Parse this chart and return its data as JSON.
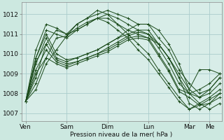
{
  "bg_color": "#cce8e0",
  "plot_bg_color": "#d8ede8",
  "grid_color": "#aacccc",
  "line_color": "#1a4a1a",
  "ylabel_values": [
    1007,
    1008,
    1009,
    1010,
    1011,
    1012
  ],
  "xlabel": "Pression niveau de la mer( hPa )",
  "day_labels": [
    "Ven",
    "Sam",
    "Dim",
    "Lun",
    "Mar",
    "Me"
  ],
  "day_positions": [
    0,
    48,
    96,
    144,
    192,
    216
  ],
  "ylim": [
    1006.6,
    1012.6
  ],
  "xlim": [
    -5,
    230
  ],
  "total_points": 228,
  "series": [
    {
      "pts": [
        [
          0,
          1007.6
        ],
        [
          12,
          1008.5
        ],
        [
          24,
          1009.8
        ],
        [
          36,
          1010.8
        ],
        [
          48,
          1010.9
        ],
        [
          60,
          1011.5
        ],
        [
          72,
          1011.8
        ],
        [
          84,
          1012.0
        ],
        [
          96,
          1012.2
        ],
        [
          108,
          1012.0
        ],
        [
          120,
          1011.8
        ],
        [
          132,
          1011.5
        ],
        [
          144,
          1011.5
        ],
        [
          156,
          1011.2
        ],
        [
          168,
          1010.5
        ],
        [
          180,
          1009.5
        ],
        [
          192,
          1008.2
        ],
        [
          204,
          1009.2
        ],
        [
          216,
          1009.2
        ],
        [
          228,
          1009.0
        ]
      ]
    },
    {
      "pts": [
        [
          0,
          1007.6
        ],
        [
          12,
          1008.2
        ],
        [
          24,
          1009.5
        ],
        [
          36,
          1010.2
        ],
        [
          48,
          1010.9
        ],
        [
          60,
          1011.3
        ],
        [
          72,
          1011.6
        ],
        [
          84,
          1011.8
        ],
        [
          96,
          1011.8
        ],
        [
          108,
          1011.5
        ],
        [
          120,
          1011.2
        ],
        [
          132,
          1011.0
        ],
        [
          144,
          1010.8
        ],
        [
          156,
          1010.5
        ],
        [
          168,
          1009.8
        ],
        [
          180,
          1008.8
        ],
        [
          192,
          1008.0
        ],
        [
          204,
          1008.2
        ],
        [
          216,
          1008.5
        ],
        [
          228,
          1009.0
        ]
      ]
    },
    {
      "pts": [
        [
          0,
          1007.6
        ],
        [
          12,
          1008.8
        ],
        [
          24,
          1010.5
        ],
        [
          36,
          1011.2
        ],
        [
          48,
          1011.0
        ],
        [
          60,
          1011.2
        ],
        [
          72,
          1011.5
        ],
        [
          84,
          1011.8
        ],
        [
          96,
          1012.0
        ],
        [
          108,
          1011.8
        ],
        [
          120,
          1011.5
        ],
        [
          132,
          1011.2
        ],
        [
          144,
          1011.0
        ],
        [
          156,
          1010.5
        ],
        [
          168,
          1009.8
        ],
        [
          180,
          1008.8
        ],
        [
          192,
          1007.5
        ],
        [
          204,
          1007.2
        ],
        [
          216,
          1007.5
        ],
        [
          228,
          1007.8
        ]
      ]
    },
    {
      "pts": [
        [
          0,
          1007.6
        ],
        [
          12,
          1009.5
        ],
        [
          24,
          1010.8
        ],
        [
          36,
          1009.8
        ],
        [
          48,
          1009.6
        ],
        [
          60,
          1009.8
        ],
        [
          72,
          1010.0
        ],
        [
          84,
          1010.2
        ],
        [
          96,
          1010.5
        ],
        [
          108,
          1010.8
        ],
        [
          120,
          1011.2
        ],
        [
          132,
          1011.5
        ],
        [
          144,
          1011.5
        ],
        [
          156,
          1010.8
        ],
        [
          168,
          1010.2
        ],
        [
          180,
          1009.2
        ],
        [
          192,
          1008.5
        ],
        [
          204,
          1008.0
        ],
        [
          216,
          1008.2
        ],
        [
          228,
          1008.8
        ]
      ]
    },
    {
      "pts": [
        [
          0,
          1007.6
        ],
        [
          12,
          1009.8
        ],
        [
          24,
          1011.0
        ],
        [
          36,
          1010.0
        ],
        [
          48,
          1009.7
        ],
        [
          60,
          1009.8
        ],
        [
          72,
          1010.0
        ],
        [
          84,
          1010.2
        ],
        [
          96,
          1010.5
        ],
        [
          108,
          1010.8
        ],
        [
          120,
          1011.0
        ],
        [
          132,
          1011.2
        ],
        [
          144,
          1011.2
        ],
        [
          156,
          1010.5
        ],
        [
          168,
          1009.8
        ],
        [
          180,
          1009.0
        ],
        [
          192,
          1008.2
        ],
        [
          204,
          1007.8
        ],
        [
          216,
          1008.0
        ],
        [
          228,
          1008.5
        ]
      ]
    },
    {
      "pts": [
        [
          0,
          1007.6
        ],
        [
          12,
          1009.6
        ],
        [
          24,
          1010.5
        ],
        [
          36,
          1009.7
        ],
        [
          48,
          1009.5
        ],
        [
          60,
          1009.6
        ],
        [
          72,
          1009.8
        ],
        [
          84,
          1010.0
        ],
        [
          96,
          1010.3
        ],
        [
          108,
          1010.6
        ],
        [
          120,
          1010.9
        ],
        [
          132,
          1011.1
        ],
        [
          144,
          1011.0
        ],
        [
          156,
          1010.3
        ],
        [
          168,
          1009.5
        ],
        [
          180,
          1008.5
        ],
        [
          192,
          1008.0
        ],
        [
          204,
          1007.5
        ],
        [
          216,
          1007.2
        ],
        [
          228,
          1007.5
        ]
      ]
    },
    {
      "pts": [
        [
          0,
          1007.6
        ],
        [
          12,
          1009.2
        ],
        [
          24,
          1010.2
        ],
        [
          36,
          1009.6
        ],
        [
          48,
          1009.4
        ],
        [
          60,
          1009.6
        ],
        [
          72,
          1009.8
        ],
        [
          84,
          1010.0
        ],
        [
          96,
          1010.2
        ],
        [
          108,
          1010.5
        ],
        [
          120,
          1010.8
        ],
        [
          132,
          1010.9
        ],
        [
          144,
          1010.8
        ],
        [
          156,
          1010.0
        ],
        [
          168,
          1009.2
        ],
        [
          180,
          1008.2
        ],
        [
          192,
          1008.0
        ],
        [
          204,
          1007.8
        ],
        [
          216,
          1008.2
        ],
        [
          228,
          1008.8
        ]
      ]
    },
    {
      "pts": [
        [
          0,
          1007.6
        ],
        [
          12,
          1009.0
        ],
        [
          24,
          1009.8
        ],
        [
          36,
          1009.5
        ],
        [
          48,
          1009.3
        ],
        [
          60,
          1009.5
        ],
        [
          72,
          1009.7
        ],
        [
          84,
          1009.9
        ],
        [
          96,
          1010.1
        ],
        [
          108,
          1010.4
        ],
        [
          120,
          1010.7
        ],
        [
          132,
          1010.8
        ],
        [
          144,
          1010.7
        ],
        [
          156,
          1009.9
        ],
        [
          168,
          1009.1
        ],
        [
          180,
          1008.1
        ],
        [
          192,
          1007.8
        ],
        [
          204,
          1007.4
        ],
        [
          216,
          1007.5
        ],
        [
          228,
          1008.0
        ]
      ]
    },
    {
      "pts": [
        [
          0,
          1007.6
        ],
        [
          12,
          1010.2
        ],
        [
          24,
          1011.5
        ],
        [
          36,
          1011.3
        ],
        [
          48,
          1011.0
        ],
        [
          60,
          1011.5
        ],
        [
          72,
          1011.8
        ],
        [
          84,
          1012.2
        ],
        [
          96,
          1012.0
        ],
        [
          108,
          1011.5
        ],
        [
          120,
          1011.0
        ],
        [
          132,
          1010.5
        ],
        [
          144,
          1010.0
        ],
        [
          156,
          1009.2
        ],
        [
          168,
          1008.5
        ],
        [
          180,
          1007.8
        ],
        [
          192,
          1007.2
        ],
        [
          204,
          1007.5
        ],
        [
          216,
          1007.8
        ],
        [
          228,
          1008.2
        ]
      ]
    },
    {
      "pts": [
        [
          0,
          1007.6
        ],
        [
          12,
          1009.8
        ],
        [
          24,
          1011.2
        ],
        [
          36,
          1011.0
        ],
        [
          48,
          1010.8
        ],
        [
          60,
          1011.2
        ],
        [
          72,
          1011.5
        ],
        [
          84,
          1011.8
        ],
        [
          96,
          1011.6
        ],
        [
          108,
          1011.2
        ],
        [
          120,
          1010.8
        ],
        [
          132,
          1010.2
        ],
        [
          144,
          1009.7
        ],
        [
          156,
          1009.0
        ],
        [
          168,
          1008.3
        ],
        [
          180,
          1007.6
        ],
        [
          192,
          1007.2
        ],
        [
          204,
          1007.4
        ],
        [
          216,
          1007.7
        ],
        [
          228,
          1008.0
        ]
      ]
    }
  ]
}
